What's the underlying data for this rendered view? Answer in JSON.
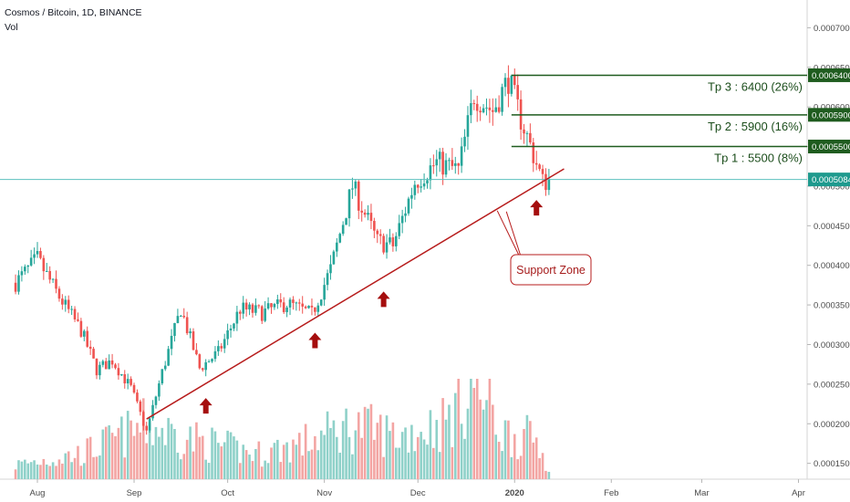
{
  "header": {
    "title": "Cosmos / Bitcoin, 1D, BINANCE",
    "volume_label": "Vol"
  },
  "colors": {
    "up": "#26a69a",
    "down": "#ef5350",
    "vol_up": "#8fd1c9",
    "vol_down": "#f3a5a3",
    "target": "#1f5c1f",
    "support": "#b71c1c",
    "price_line": "#5bc0be",
    "arrow": "#a50e0e"
  },
  "chart_data": {
    "type": "candlestick",
    "symbol": "Cosmos / Bitcoin",
    "interval": "1D",
    "exchange": "BINANCE",
    "x_tick_labels": [
      "Aug",
      "Sep",
      "Oct",
      "Nov",
      "Dec",
      "2020",
      "Feb",
      "Mar",
      "Apr"
    ],
    "y_tick_labels": [
      "0.0001500",
      "0.0002000",
      "0.0002500",
      "0.0003000",
      "0.0003500",
      "0.0004000",
      "0.0004500",
      "0.0005000",
      "0.0005500",
      "0.0006000",
      "0.0006500",
      "0.0007000"
    ],
    "y_ticks": [
      0.00015,
      0.0002,
      0.00025,
      0.0003,
      0.00035,
      0.0004,
      0.00045,
      0.0005,
      0.00055,
      0.0006,
      0.00065,
      0.0007
    ],
    "ylim": [
      0.00013,
      0.000735
    ],
    "current_price": "0.0005084",
    "targets": [
      {
        "label": "Tp 3 : 6400 (26%)",
        "tag": "0.0006400",
        "value": 0.00064
      },
      {
        "label": "Tp 2 : 5900 (16%)",
        "tag": "0.0005900",
        "value": 0.00059
      },
      {
        "label": "Tp 1 : 5500 (8%)",
        "tag": "0.0005500",
        "value": 0.00055
      }
    ],
    "support_line": {
      "start": {
        "date": "2019-09-05",
        "value": 0.000206
      },
      "end": {
        "date": "2020-01-11",
        "value": 0.000508
      }
    },
    "support_annotation": "Support Zone",
    "support_touch_dates": [
      "2019-09-24",
      "2019-10-29",
      "2019-11-20",
      "2020-01-08"
    ],
    "close_series": [
      {
        "date": "2019-07-25",
        "close": 0.000378
      },
      {
        "date": "2019-08-01",
        "close": 0.000408
      },
      {
        "date": "2019-08-08",
        "close": 0.00036
      },
      {
        "date": "2019-08-15",
        "close": 0.000318
      },
      {
        "date": "2019-08-20",
        "close": 0.000268
      },
      {
        "date": "2019-08-25",
        "close": 0.00028
      },
      {
        "date": "2019-08-31",
        "close": 0.000245
      },
      {
        "date": "2019-09-05",
        "close": 0.00019
      },
      {
        "date": "2019-09-10",
        "close": 0.000265
      },
      {
        "date": "2019-09-16",
        "close": 0.000345
      },
      {
        "date": "2019-09-22",
        "close": 0.00027
      },
      {
        "date": "2019-09-28",
        "close": 0.00029
      },
      {
        "date": "2019-10-05",
        "close": 0.000345
      },
      {
        "date": "2019-10-12",
        "close": 0.00034
      },
      {
        "date": "2019-10-20",
        "close": 0.000352
      },
      {
        "date": "2019-10-28",
        "close": 0.000338
      },
      {
        "date": "2019-11-03",
        "close": 0.000395
      },
      {
        "date": "2019-11-10",
        "close": 0.0005
      },
      {
        "date": "2019-11-18",
        "close": 0.00043
      },
      {
        "date": "2019-11-23",
        "close": 0.000425
      },
      {
        "date": "2019-11-30",
        "close": 0.000505
      },
      {
        "date": "2019-12-07",
        "close": 0.00053
      },
      {
        "date": "2019-12-14",
        "close": 0.00052
      },
      {
        "date": "2019-12-19",
        "close": 0.000615
      },
      {
        "date": "2019-12-25",
        "close": 0.000595
      },
      {
        "date": "2019-12-30",
        "close": 0.000635
      },
      {
        "date": "2020-01-03",
        "close": 0.000585
      },
      {
        "date": "2020-01-07",
        "close": 0.00054
      },
      {
        "date": "2020-01-10",
        "close": 0.000505
      },
      {
        "date": "2020-01-12",
        "close": 0.000508
      }
    ],
    "volume_series": [
      {
        "date": "2019-07-25",
        "volume": 8
      },
      {
        "date": "2019-08-15",
        "volume": 14
      },
      {
        "date": "2019-09-05",
        "volume": 30
      },
      {
        "date": "2019-09-20",
        "volume": 22
      },
      {
        "date": "2019-10-10",
        "volume": 14
      },
      {
        "date": "2019-10-25",
        "volume": 20
      },
      {
        "date": "2019-11-10",
        "volume": 30
      },
      {
        "date": "2019-11-25",
        "volume": 24
      },
      {
        "date": "2019-12-10",
        "volume": 32
      },
      {
        "date": "2019-12-19",
        "volume": 55
      },
      {
        "date": "2019-12-28",
        "volume": 26
      },
      {
        "date": "2020-01-08",
        "volume": 22
      },
      {
        "date": "2020-01-12",
        "volume": 6
      }
    ],
    "grid": false,
    "legend": "none"
  }
}
